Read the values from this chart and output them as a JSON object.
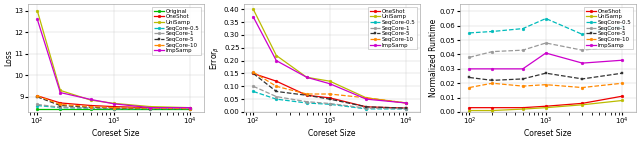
{
  "x": [
    100,
    200,
    500,
    1000,
    3000,
    10000
  ],
  "plot1": {
    "xlabel": "Coreset Size",
    "ylabel": "Loss",
    "ylim": [
      8.3,
      13.3
    ],
    "yticks": [
      9,
      10,
      11,
      12,
      13
    ],
    "series": {
      "Original": {
        "y": [
          8.45,
          8.45,
          8.45,
          8.45,
          8.45,
          8.45
        ],
        "color": "#00bb00",
        "ls": "-",
        "marker": "o",
        "ms": 2.0,
        "lw": 0.9
      },
      "OneShot": {
        "y": [
          9.05,
          8.72,
          8.6,
          8.55,
          8.5,
          8.5
        ],
        "color": "#ee0000",
        "ls": "-",
        "marker": "o",
        "ms": 2.0,
        "lw": 0.9
      },
      "UniSamp": {
        "y": [
          13.0,
          9.3,
          8.85,
          8.7,
          8.55,
          8.5
        ],
        "color": "#bbbb00",
        "ls": "-",
        "marker": "o",
        "ms": 2.0,
        "lw": 0.9
      },
      "SeqCore-0.5": {
        "y": [
          8.6,
          8.5,
          8.47,
          8.45,
          8.46,
          8.46
        ],
        "color": "#00bbbb",
        "ls": "--",
        "marker": "o",
        "ms": 2.0,
        "lw": 0.9
      },
      "SeqCore-1": {
        "y": [
          8.65,
          8.52,
          8.48,
          8.46,
          8.46,
          8.46
        ],
        "color": "#999999",
        "ls": "--",
        "marker": "o",
        "ms": 2.0,
        "lw": 0.9
      },
      "SeqCore-5": {
        "y": [
          9.0,
          8.6,
          8.52,
          8.48,
          8.46,
          8.46
        ],
        "color": "#333333",
        "ls": "--",
        "marker": "s",
        "ms": 2.0,
        "lw": 0.9
      },
      "SeqCore-10": {
        "y": [
          9.05,
          8.65,
          8.55,
          8.5,
          8.47,
          8.46
        ],
        "color": "#ff8800",
        "ls": "--",
        "marker": "o",
        "ms": 2.0,
        "lw": 0.9
      },
      "ImpSamp": {
        "y": [
          12.6,
          9.2,
          8.88,
          8.68,
          8.5,
          8.5
        ],
        "color": "#cc00cc",
        "ls": "-",
        "marker": "o",
        "ms": 2.0,
        "lw": 0.9
      }
    },
    "legend_order": [
      "Original",
      "OneShot",
      "UniSamp",
      "SeqCore-0.5",
      "SeqCore-1",
      "SeqCore-5",
      "SeqCore-10",
      "ImpSamp"
    ]
  },
  "plot2": {
    "xlabel": "Coreset Size",
    "ylabel": "Error$_\\beta$",
    "ylim": [
      0.0,
      0.42
    ],
    "yticks": [
      0.0,
      0.05,
      0.1,
      0.15,
      0.2,
      0.25,
      0.3,
      0.35,
      0.4
    ],
    "series": {
      "OneShot": {
        "y": [
          0.15,
          0.12,
          0.065,
          0.055,
          0.02,
          0.015
        ],
        "color": "#ee0000",
        "ls": "-",
        "marker": "o",
        "ms": 2.0,
        "lw": 0.9
      },
      "UniSamp": {
        "y": [
          0.4,
          0.22,
          0.135,
          0.12,
          0.055,
          0.035
        ],
        "color": "#bbbb00",
        "ls": "-",
        "marker": "o",
        "ms": 2.0,
        "lw": 0.9
      },
      "SeqCore-0.5": {
        "y": [
          0.08,
          0.05,
          0.035,
          0.03,
          0.012,
          0.012
        ],
        "color": "#00bbbb",
        "ls": "--",
        "marker": "o",
        "ms": 2.0,
        "lw": 0.9
      },
      "SeqCore-1": {
        "y": [
          0.1,
          0.06,
          0.04,
          0.033,
          0.015,
          0.013
        ],
        "color": "#999999",
        "ls": "--",
        "marker": "o",
        "ms": 2.0,
        "lw": 0.9
      },
      "SeqCore-5": {
        "y": [
          0.15,
          0.08,
          0.065,
          0.05,
          0.02,
          0.015
        ],
        "color": "#333333",
        "ls": "--",
        "marker": "s",
        "ms": 2.0,
        "lw": 0.9
      },
      "SeqCore-10": {
        "y": [
          0.155,
          0.1,
          0.07,
          0.07,
          0.055,
          0.035
        ],
        "color": "#ff8800",
        "ls": "--",
        "marker": "o",
        "ms": 2.0,
        "lw": 0.9
      },
      "ImpSamp": {
        "y": [
          0.37,
          0.2,
          0.135,
          0.11,
          0.05,
          0.035
        ],
        "color": "#cc00cc",
        "ls": "-",
        "marker": "o",
        "ms": 2.0,
        "lw": 0.9
      }
    },
    "legend_order": [
      "OneShot",
      "UniSamp",
      "SeqCore-0.5",
      "SeqCore-1",
      "SeqCore-5",
      "SeqCore-10",
      "ImpSamp"
    ]
  },
  "plot3": {
    "xlabel": "Coreset Size",
    "ylabel": "Normalized Runtime",
    "ylim": [
      0.0,
      0.075
    ],
    "yticks": [
      0.0,
      0.01,
      0.02,
      0.03,
      0.04,
      0.05,
      0.06,
      0.07
    ],
    "series": {
      "OneShot": {
        "y": [
          0.003,
          0.003,
          0.003,
          0.004,
          0.006,
          0.011
        ],
        "color": "#ee0000",
        "ls": "-",
        "marker": "o",
        "ms": 2.0,
        "lw": 0.9
      },
      "UniSamp": {
        "y": [
          0.001,
          0.001,
          0.002,
          0.003,
          0.005,
          0.008
        ],
        "color": "#bbbb00",
        "ls": "-",
        "marker": "o",
        "ms": 2.0,
        "lw": 0.9
      },
      "SeqCore-0.5": {
        "y": [
          0.055,
          0.056,
          0.058,
          0.065,
          0.054,
          0.06
        ],
        "color": "#00bbbb",
        "ls": "--",
        "marker": "o",
        "ms": 2.0,
        "lw": 0.9
      },
      "SeqCore-1": {
        "y": [
          0.038,
          0.042,
          0.043,
          0.048,
          0.043,
          0.046
        ],
        "color": "#999999",
        "ls": "--",
        "marker": "o",
        "ms": 2.0,
        "lw": 0.9
      },
      "SeqCore-5": {
        "y": [
          0.024,
          0.022,
          0.023,
          0.027,
          0.023,
          0.027
        ],
        "color": "#333333",
        "ls": "--",
        "marker": "s",
        "ms": 2.0,
        "lw": 0.9
      },
      "SeqCore-10": {
        "y": [
          0.017,
          0.02,
          0.018,
          0.019,
          0.017,
          0.02
        ],
        "color": "#ff8800",
        "ls": "--",
        "marker": "o",
        "ms": 2.0,
        "lw": 0.9
      },
      "ImpSamp": {
        "y": [
          0.03,
          0.03,
          0.03,
          0.041,
          0.034,
          0.036
        ],
        "color": "#cc00cc",
        "ls": "-",
        "marker": "o",
        "ms": 2.0,
        "lw": 0.9
      }
    },
    "legend_order": [
      "OneShot",
      "UniSamp",
      "SeqCore-0.5",
      "SeqCore-1",
      "SeqCore-5",
      "SeqCore-10",
      "ImpSamp"
    ]
  },
  "fig_bg": "#ffffff",
  "ax_bg": "#ffffff",
  "xlabel_fs": 5.5,
  "ylabel_fs": 5.5,
  "tick_fs": 5.0,
  "legend_fs": 4.0
}
